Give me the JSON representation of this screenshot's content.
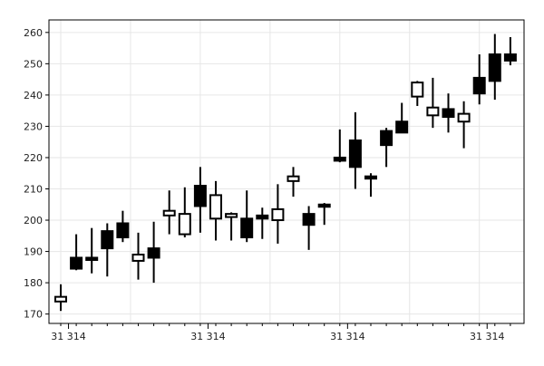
{
  "chart_data": {
    "type": "candlestick",
    "title": "",
    "xlabel": "",
    "ylabel": "",
    "ylim": [
      167,
      264
    ],
    "y_ticks": [
      170,
      180,
      190,
      200,
      210,
      220,
      230,
      240,
      250,
      260
    ],
    "x_tick_labels": [
      "31 314",
      "31 314",
      "31 314",
      "31 314",
      "31 314"
    ],
    "x_tick_at_candle": [
      1,
      10,
      19,
      28,
      37
    ],
    "grid": true,
    "legend": "none",
    "colors": {
      "up_fill": "#ffffff",
      "down_fill": "#000000",
      "outline": "#000000",
      "grid": "#e6e6e6",
      "axis": "#000000"
    },
    "candles": [
      {
        "open": 174,
        "high": 179.5,
        "low": 171,
        "close": 175.5
      },
      {
        "open": 188,
        "high": 195.5,
        "low": 184,
        "close": 184.5
      },
      {
        "open": 188,
        "high": 197.5,
        "low": 183,
        "close": 187.5
      },
      {
        "open": 196.5,
        "high": 199,
        "low": 182,
        "close": 191
      },
      {
        "open": 199,
        "high": 203,
        "low": 193,
        "close": 194.5
      },
      {
        "open": 187,
        "high": 196,
        "low": 181,
        "close": 189
      },
      {
        "open": 191,
        "high": 199.5,
        "low": 180,
        "close": 188
      },
      {
        "open": 201.5,
        "high": 209.5,
        "low": 195.5,
        "close": 203
      },
      {
        "open": 195.5,
        "high": 210.5,
        "low": 194.5,
        "close": 202
      },
      {
        "open": 211,
        "high": 217,
        "low": 196,
        "close": 204.5
      },
      {
        "open": 200.5,
        "high": 212.5,
        "low": 193.5,
        "close": 208
      },
      {
        "open": 201,
        "high": 202.5,
        "low": 193.5,
        "close": 202
      },
      {
        "open": 200.5,
        "high": 209.5,
        "low": 193,
        "close": 194.5
      },
      {
        "open": 201.5,
        "high": 204,
        "low": 194,
        "close": 200.5
      },
      {
        "open": 200,
        "high": 211.5,
        "low": 192.5,
        "close": 203.5
      },
      {
        "open": 212.5,
        "high": 217,
        "low": 207.5,
        "close": 214
      },
      {
        "open": 202,
        "high": 204.5,
        "low": 190.5,
        "close": 198.5
      },
      {
        "open": 205,
        "high": 205.5,
        "low": 198.5,
        "close": 204.5
      },
      {
        "open": 220,
        "high": 229,
        "low": 218.5,
        "close": 219
      },
      {
        "open": 225.5,
        "high": 234.5,
        "low": 210,
        "close": 217
      },
      {
        "open": 214,
        "high": 215,
        "low": 207.5,
        "close": 213.5
      },
      {
        "open": 228.5,
        "high": 229.5,
        "low": 217,
        "close": 224
      },
      {
        "open": 231.5,
        "high": 237.5,
        "low": 228,
        "close": 228
      },
      {
        "open": 239.5,
        "high": 244.5,
        "low": 236.5,
        "close": 244
      },
      {
        "open": 233.5,
        "high": 245.5,
        "low": 229.5,
        "close": 236
      },
      {
        "open": 235.5,
        "high": 240.5,
        "low": 228,
        "close": 233
      },
      {
        "open": 231.5,
        "high": 238,
        "low": 223,
        "close": 234
      },
      {
        "open": 245.5,
        "high": 253,
        "low": 237,
        "close": 240.5
      },
      {
        "open": 253,
        "high": 259.5,
        "low": 238.5,
        "close": 244.5
      },
      {
        "open": 253,
        "high": 258.5,
        "low": 249.5,
        "close": 251
      }
    ]
  }
}
